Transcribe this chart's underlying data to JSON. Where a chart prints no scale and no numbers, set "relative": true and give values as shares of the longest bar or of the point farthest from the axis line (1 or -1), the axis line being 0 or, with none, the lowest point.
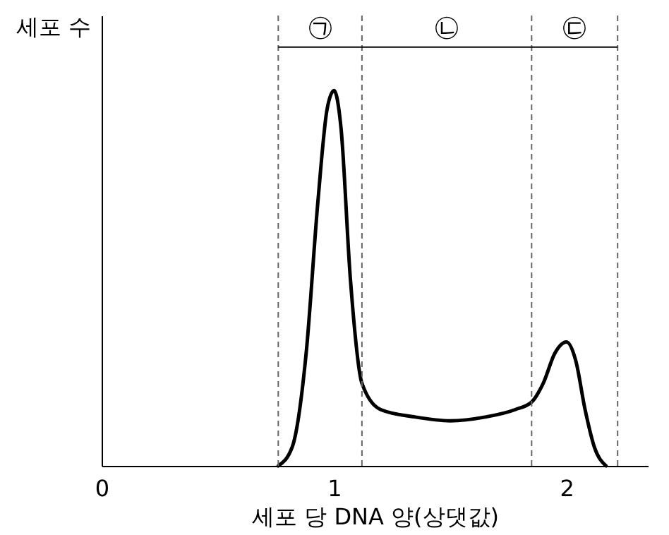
{
  "chart_data": {
    "type": "line",
    "relative": true,
    "xlabel": "세포 당 DNA 양(상댓값)",
    "ylabel": "세포 수",
    "x": [
      0.76,
      0.82,
      0.88,
      0.93,
      0.97,
      1.0,
      1.03,
      1.07,
      1.12,
      1.2,
      1.35,
      1.5,
      1.65,
      1.78,
      1.85,
      1.9,
      1.95,
      2.0,
      2.04,
      2.08,
      2.12,
      2.17
    ],
    "values": [
      0,
      0.05,
      0.3,
      0.7,
      0.95,
      1.0,
      0.9,
      0.5,
      0.22,
      0.15,
      0.13,
      0.12,
      0.13,
      0.15,
      0.17,
      0.22,
      0.3,
      0.33,
      0.28,
      0.15,
      0.05,
      0
    ],
    "color": "#000000",
    "xlim": [
      0,
      2.35
    ],
    "xticks": [
      0,
      1,
      2
    ],
    "grid": false,
    "ref_lines": [
      {
        "axis": "x",
        "value": 0.76,
        "line_style": "dashed",
        "color": "#666666"
      },
      {
        "axis": "x",
        "value": 1.12,
        "line_style": "dashed",
        "color": "#666666"
      },
      {
        "axis": "x",
        "value": 1.85,
        "line_style": "dashed",
        "color": "#666666"
      },
      {
        "axis": "x",
        "value": 2.22,
        "line_style": "dashed",
        "color": "#666666"
      }
    ],
    "annotations": [
      "㉠",
      "㉡",
      "㉢"
    ]
  }
}
